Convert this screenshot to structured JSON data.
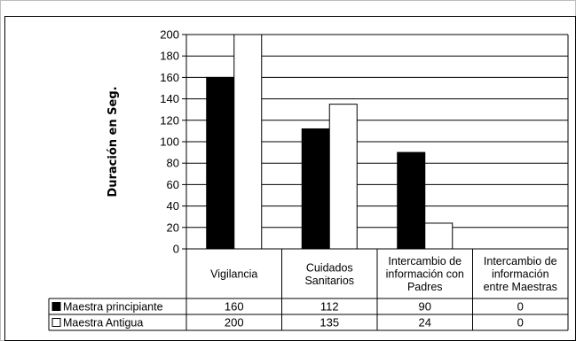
{
  "chart_data": {
    "type": "bar",
    "ylabel": "Duración en Seg.",
    "ylim": [
      0,
      200
    ],
    "yticks": [
      0,
      20,
      40,
      60,
      80,
      100,
      120,
      140,
      160,
      180,
      200
    ],
    "categories": [
      [
        "Vigilancia"
      ],
      [
        "Cuidados",
        "Sanitarios"
      ],
      [
        "Intercambio de",
        "información con",
        "Padres"
      ],
      [
        "Intercambio de",
        "información",
        "entre Maestras"
      ]
    ],
    "series": [
      {
        "name": "Maestra principiante",
        "color": "#000000",
        "values": [
          160,
          112,
          90,
          0
        ]
      },
      {
        "name": "Maestra Antigua",
        "color": "#ffffff",
        "values": [
          200,
          135,
          24,
          0
        ]
      }
    ],
    "grid": true,
    "legend": "data-table"
  }
}
